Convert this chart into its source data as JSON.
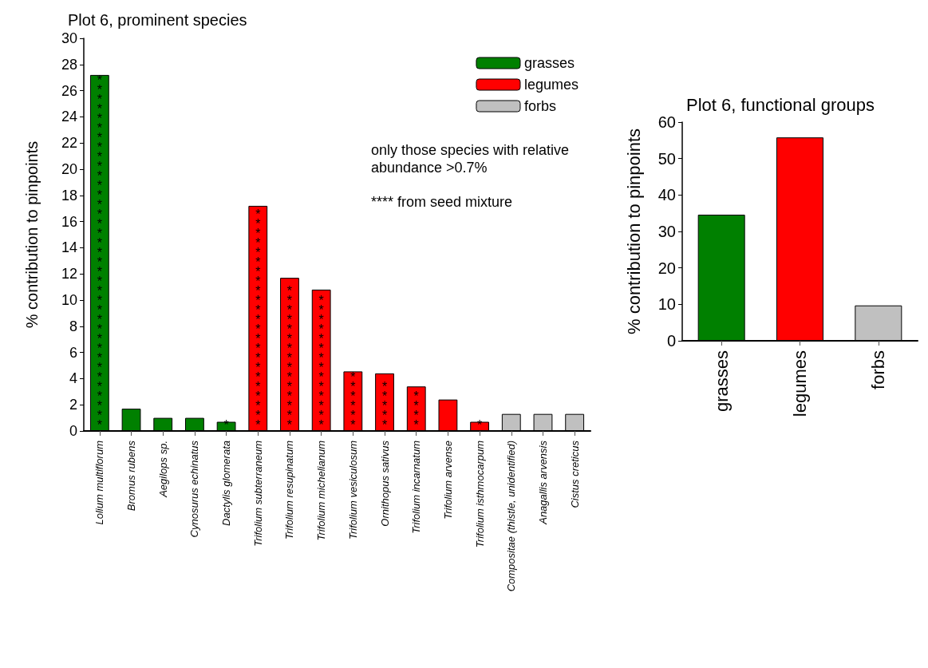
{
  "chart_data": [
    {
      "type": "bar",
      "title": "Plot 6, prominent species",
      "ylabel": "% contribution to pinpoints",
      "categories": [
        "Lolium multiflorum",
        "Bromus rubens",
        "Aegilops sp.",
        "Cynosurus echinatus",
        "Dactylis glomerata",
        "Trifolium subterraneum",
        "Trifolium resupinatum",
        "Trifolium michelianum",
        "Trifolium vesiculosum",
        "Ornithopus sativus",
        "Trifolium incarnatum",
        "Trifolium arvense",
        "Trifolium isthmocarpum",
        "Compositae (thistle, unidentified)",
        "Anagallis arvensis",
        "Cistus creticus"
      ],
      "series": [
        {
          "name": "grasses",
          "color": "#008000",
          "values": [
            27.2,
            1.7,
            1.0,
            1.0,
            0.7,
            null,
            null,
            null,
            null,
            null,
            null,
            null,
            null,
            null,
            null,
            null
          ],
          "value_labels": [
            "*************************************",
            null,
            null,
            null,
            "*",
            null,
            null,
            null,
            null,
            null,
            null,
            null,
            null,
            null,
            null,
            null
          ]
        },
        {
          "name": "legumes",
          "color": "#ff0000",
          "values": [
            null,
            null,
            null,
            null,
            null,
            17.2,
            11.7,
            10.8,
            4.55,
            4.4,
            3.4,
            2.4,
            0.7,
            null,
            null,
            null
          ],
          "value_labels": [
            null,
            null,
            null,
            null,
            null,
            "***********************",
            "***************",
            "**************",
            "******",
            "*****",
            "****",
            null,
            "*",
            null,
            null,
            null
          ]
        },
        {
          "name": "forbs",
          "color": "#c0c0c0",
          "values": [
            null,
            null,
            null,
            null,
            null,
            null,
            null,
            null,
            null,
            null,
            null,
            null,
            null,
            1.3,
            1.3,
            1.3
          ]
        }
      ],
      "stacked": true,
      "ylim": [
        0,
        30
      ],
      "yticks": [
        0,
        2,
        4,
        6,
        8,
        10,
        12,
        14,
        16,
        18,
        20,
        22,
        24,
        26,
        28,
        30
      ],
      "grid": false,
      "legend": "top right",
      "annotations": [
        "only those species with relative abundance >0.7%",
        "**** from seed mixture"
      ]
    },
    {
      "type": "bar",
      "title": "Plot 6, functional groups",
      "ylabel": "% contribution to pinpoints",
      "categories": [
        "grasses",
        "legumes",
        "forbs"
      ],
      "values": [
        34.6,
        55.8,
        9.7
      ],
      "colors": [
        "#008000",
        "#ff0000",
        "#c0c0c0"
      ],
      "ylim": [
        0,
        60
      ],
      "yticks": [
        0,
        10,
        20,
        30,
        40,
        50,
        60
      ],
      "grid": false,
      "legend": false
    }
  ]
}
